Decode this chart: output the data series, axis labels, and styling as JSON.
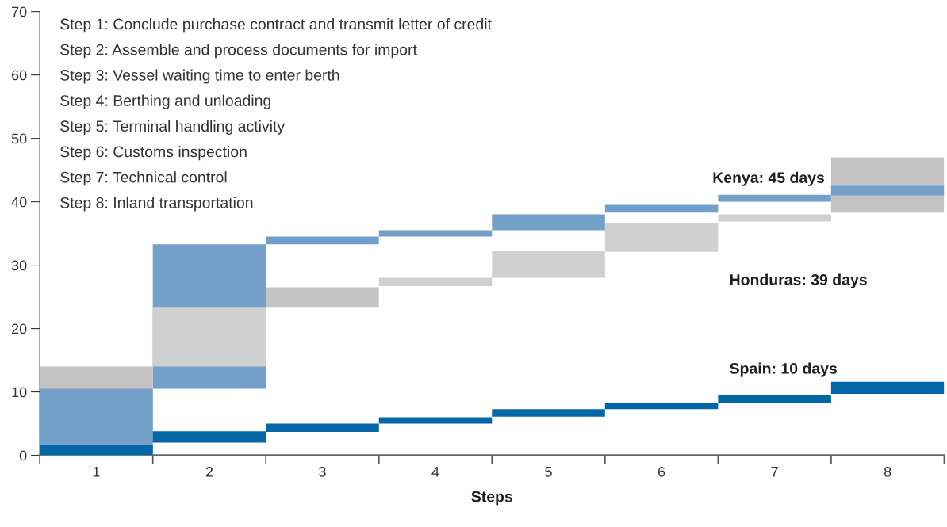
{
  "chart_data": {
    "type": "bar",
    "xlabel": "Steps",
    "categories": [
      "1",
      "2",
      "3",
      "4",
      "5",
      "6",
      "7",
      "8"
    ],
    "series": [
      {
        "name": "Kenya: 45 days",
        "color": "#73a0c9",
        "base": [
          0,
          10.5,
          33.3,
          34.5,
          35.5,
          38.3,
          40,
          41
        ],
        "values": [
          10.5,
          22.8,
          1.2,
          1,
          2.5,
          1.2,
          1.1,
          1.5
        ]
      },
      {
        "name": "Honduras: 39 days",
        "color": "#c4c4c4",
        "colors": [
          "#c4c4c4",
          "#d0d0d0",
          "#c4c4c4",
          "#d0d0d0",
          "#d0d0d0",
          "#d0d0d0",
          "#d0d0d0",
          "#c4c4c4"
        ],
        "base": [
          0,
          14,
          23.3,
          26.7,
          28,
          32.1,
          36.9,
          38.3
        ],
        "values": [
          14,
          9.3,
          3.2,
          1.3,
          4.2,
          4.6,
          1.1,
          8.7
        ]
      },
      {
        "name": "Spain: 10 days",
        "color": "#0066a6",
        "base": [
          0,
          2,
          3.7,
          5,
          6.1,
          7.3,
          8.3,
          9.7
        ],
        "values": [
          1.7,
          1.8,
          1.3,
          1,
          1.2,
          1,
          1.2,
          1.9
        ]
      }
    ],
    "ylim": [
      0,
      70
    ],
    "yticks": [
      0,
      10,
      20,
      30,
      40,
      50,
      60,
      70
    ],
    "annotations": [
      "Step 1: Conclude purchase contract and transmit letter of credit",
      "Step 2: Assemble and process documents for import",
      "Step 3: Vessel waiting time to enter berth",
      "Step 4: Berthing and unloading",
      "Step 5: Terminal handling activity",
      "Step 6: Customs inspection",
      "Step 7: Technical control",
      "Step 8: Inland transportation"
    ],
    "grid": false,
    "legend": false
  }
}
